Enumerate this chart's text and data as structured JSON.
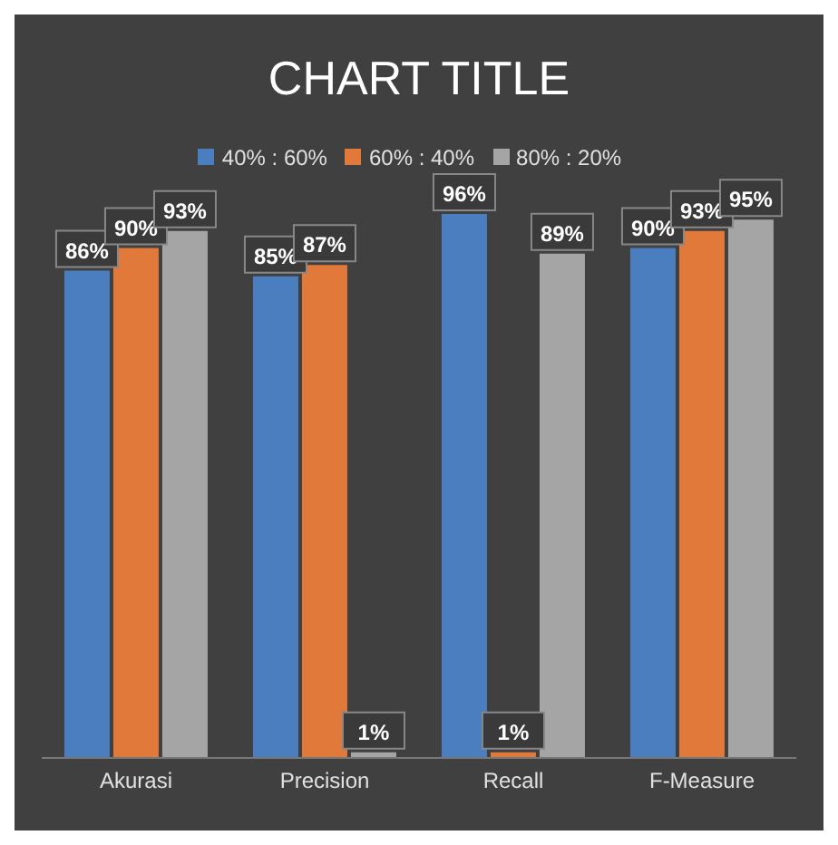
{
  "chart_data": {
    "type": "bar",
    "title": "CHART TITLE",
    "categories": [
      "Akurasi",
      "Precision",
      "Recall",
      "F-Measure"
    ],
    "series": [
      {
        "name": "40% : 60%",
        "color": "#4a7ebf",
        "values": [
          86,
          85,
          96,
          90
        ],
        "value_labels": [
          "86%",
          "85%",
          "96%",
          "90%"
        ]
      },
      {
        "name": "60% : 40%",
        "color": "#e0793a",
        "values": [
          90,
          87,
          1,
          93
        ],
        "value_labels": [
          "90%",
          "87%",
          "1%",
          "93%"
        ]
      },
      {
        "name": "80% : 20%",
        "color": "#a5a5a5",
        "values": [
          93,
          1,
          89,
          95
        ],
        "value_labels": [
          "93%",
          "1%",
          "89%",
          "95%"
        ]
      }
    ],
    "legend": "top",
    "tick_labels": "x"
  }
}
